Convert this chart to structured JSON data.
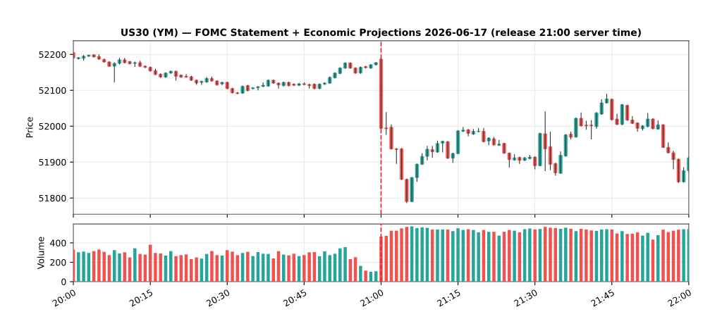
{
  "chart_data": [
    {
      "type": "candlestick",
      "title": "US30 (YM) — FOMC Statement + Economic Projections 2026-06-17 (release 21:00 server time)",
      "ylabel": "Price",
      "x": [
        "2026-06-17T20:00",
        "2026-06-17T20:01",
        "2026-06-17T20:02",
        "2026-06-17T20:03",
        "2026-06-17T20:04",
        "2026-06-17T20:05",
        "2026-06-17T20:06",
        "2026-06-17T20:07",
        "2026-06-17T20:08",
        "2026-06-17T20:09",
        "2026-06-17T20:10",
        "2026-06-17T20:11",
        "2026-06-17T20:12",
        "2026-06-17T20:13",
        "2026-06-17T20:14",
        "2026-06-17T20:15",
        "2026-06-17T20:16",
        "2026-06-17T20:17",
        "2026-06-17T20:18",
        "2026-06-17T20:19",
        "2026-06-17T20:20",
        "2026-06-17T20:21",
        "2026-06-17T20:22",
        "2026-06-17T20:23",
        "2026-06-17T20:24",
        "2026-06-17T20:25",
        "2026-06-17T20:26",
        "2026-06-17T20:27",
        "2026-06-17T20:28",
        "2026-06-17T20:29",
        "2026-06-17T20:30",
        "2026-06-17T20:31",
        "2026-06-17T20:32",
        "2026-06-17T20:33",
        "2026-06-17T20:34",
        "2026-06-17T20:35",
        "2026-06-17T20:36",
        "2026-06-17T20:37",
        "2026-06-17T20:38",
        "2026-06-17T20:39",
        "2026-06-17T20:40",
        "2026-06-17T20:41",
        "2026-06-17T20:42",
        "2026-06-17T20:43",
        "2026-06-17T20:44",
        "2026-06-17T20:45",
        "2026-06-17T20:46",
        "2026-06-17T20:47",
        "2026-06-17T20:48",
        "2026-06-17T20:49",
        "2026-06-17T20:50",
        "2026-06-17T20:51",
        "2026-06-17T20:52",
        "2026-06-17T20:53",
        "2026-06-17T20:54",
        "2026-06-17T20:55",
        "2026-06-17T20:56",
        "2026-06-17T20:57",
        "2026-06-17T20:58",
        "2026-06-17T20:59",
        "2026-06-17T21:00",
        "2026-06-17T21:01",
        "2026-06-17T21:02",
        "2026-06-17T21:03",
        "2026-06-17T21:04",
        "2026-06-17T21:05",
        "2026-06-17T21:06",
        "2026-06-17T21:07",
        "2026-06-17T21:08",
        "2026-06-17T21:09",
        "2026-06-17T21:10",
        "2026-06-17T21:11",
        "2026-06-17T21:12",
        "2026-06-17T21:13",
        "2026-06-17T21:14",
        "2026-06-17T21:15",
        "2026-06-17T21:16",
        "2026-06-17T21:17",
        "2026-06-17T21:18",
        "2026-06-17T21:19",
        "2026-06-17T21:20",
        "2026-06-17T21:21",
        "2026-06-17T21:22",
        "2026-06-17T21:23",
        "2026-06-17T21:24",
        "2026-06-17T21:25",
        "2026-06-17T21:26",
        "2026-06-17T21:27",
        "2026-06-17T21:28",
        "2026-06-17T21:29",
        "2026-06-17T21:30",
        "2026-06-17T21:31",
        "2026-06-17T21:32",
        "2026-06-17T21:33",
        "2026-06-17T21:34",
        "2026-06-17T21:35",
        "2026-06-17T21:36",
        "2026-06-17T21:37",
        "2026-06-17T21:38",
        "2026-06-17T21:39",
        "2026-06-17T21:40",
        "2026-06-17T21:41",
        "2026-06-17T21:42",
        "2026-06-17T21:43",
        "2026-06-17T21:44",
        "2026-06-17T21:45",
        "2026-06-17T21:46",
        "2026-06-17T21:47",
        "2026-06-17T21:48",
        "2026-06-17T21:49",
        "2026-06-17T21:50",
        "2026-06-17T21:51",
        "2026-06-17T21:52",
        "2026-06-17T21:53",
        "2026-06-17T21:54",
        "2026-06-17T21:55",
        "2026-06-17T21:56",
        "2026-06-17T21:57",
        "2026-06-17T21:58",
        "2026-06-17T21:59",
        "2026-06-17T22:00"
      ],
      "ohlc": [
        [
          52205,
          52207,
          52188,
          52190
        ],
        [
          52188,
          52192,
          52186,
          52191
        ],
        [
          52189,
          52198,
          52183,
          52195
        ],
        [
          52195,
          52199,
          52193,
          52198
        ],
        [
          52199,
          52200,
          52191,
          52193
        ],
        [
          52194,
          52200,
          52185,
          52187
        ],
        [
          52186,
          52188,
          52177,
          52179
        ],
        [
          52179,
          52181,
          52165,
          52167
        ],
        [
          52167,
          52178,
          52122,
          52175
        ],
        [
          52175,
          52190,
          52172,
          52185
        ],
        [
          52185,
          52190,
          52175,
          52177
        ],
        [
          52180,
          52182,
          52172,
          52174
        ],
        [
          52175,
          52180,
          52165,
          52177
        ],
        [
          52177,
          52182,
          52165,
          52167
        ],
        [
          52167,
          52169,
          52162,
          52164
        ],
        [
          52164,
          52166,
          52152,
          52154
        ],
        [
          52155,
          52160,
          52142,
          52144
        ],
        [
          52145,
          52147,
          52135,
          52137
        ],
        [
          52137,
          52150,
          52135,
          52148
        ],
        [
          52148,
          52155,
          52146,
          52153
        ],
        [
          52153,
          52155,
          52127,
          52139
        ],
        [
          52142,
          52144,
          52135,
          52137
        ],
        [
          52139,
          52145,
          52135,
          52137
        ],
        [
          52138,
          52140,
          52126,
          52128
        ],
        [
          52128,
          52130,
          52115,
          52120
        ],
        [
          52122,
          52127,
          52115,
          52125
        ],
        [
          52123,
          52137,
          52121,
          52133
        ],
        [
          52133,
          52138,
          52124,
          52126
        ],
        [
          52126,
          52128,
          52113,
          52115
        ],
        [
          52118,
          52124,
          52114,
          52122
        ],
        [
          52122,
          52124,
          52103,
          52105
        ],
        [
          52105,
          52107,
          52091,
          52093
        ],
        [
          52093,
          52095,
          52089,
          52091
        ],
        [
          52092,
          52113,
          52090,
          52111
        ],
        [
          52113,
          52115,
          52097,
          52099
        ],
        [
          52105,
          52109,
          52103,
          52107
        ],
        [
          52107,
          52112,
          52100,
          52110
        ],
        [
          52111,
          52122,
          52109,
          52114
        ],
        [
          52112,
          52130,
          52110,
          52128
        ],
        [
          52128,
          52130,
          52118,
          52120
        ],
        [
          52120,
          52122,
          52105,
          52115
        ],
        [
          52113,
          52124,
          52111,
          52122
        ],
        [
          52122,
          52124,
          52111,
          52113
        ],
        [
          52117,
          52119,
          52112,
          52114
        ],
        [
          52114,
          52120,
          52112,
          52118
        ],
        [
          52118,
          52122,
          52114,
          52116
        ],
        [
          52116,
          52118,
          52105,
          52113
        ],
        [
          52117,
          52119,
          52103,
          52105
        ],
        [
          52105,
          52119,
          52103,
          52117
        ],
        [
          52117,
          52122,
          52115,
          52120
        ],
        [
          52120,
          52138,
          52118,
          52136
        ],
        [
          52135,
          52150,
          52133,
          52148
        ],
        [
          52147,
          52164,
          52145,
          52162
        ],
        [
          52162,
          52178,
          52160,
          52176
        ],
        [
          52176,
          52178,
          52160,
          52162
        ],
        [
          52162,
          52164,
          52146,
          52148
        ],
        [
          52148,
          52166,
          52146,
          52164
        ],
        [
          52166,
          52168,
          52161,
          52163
        ],
        [
          52162,
          52173,
          52160,
          52171
        ],
        [
          52171,
          52179,
          52169,
          52177
        ],
        [
          52187,
          52190,
          51992,
          51994
        ],
        [
          51995,
          52039,
          51976,
          51993
        ],
        [
          51997,
          52005,
          51935,
          51937
        ],
        [
          51937,
          51939,
          51895,
          51935
        ],
        [
          51937,
          51939,
          51850,
          51852
        ],
        [
          51852,
          51854,
          51786,
          51790
        ],
        [
          51790,
          51859,
          51788,
          51857
        ],
        [
          51857,
          51896,
          51845,
          51894
        ],
        [
          51894,
          51925,
          51892,
          51916
        ],
        [
          51916,
          51945,
          51905,
          51936
        ],
        [
          51935,
          51945,
          51912,
          51929
        ],
        [
          51928,
          51960,
          51926,
          51952
        ],
        [
          51953,
          51960,
          51927,
          51958
        ],
        [
          51957,
          51959,
          51909,
          51911
        ],
        [
          51911,
          51926,
          51898,
          51924
        ],
        [
          51924,
          51989,
          51922,
          51987
        ],
        [
          51986,
          51998,
          51984,
          51989
        ],
        [
          51990,
          51992,
          51972,
          51980
        ],
        [
          51978,
          51992,
          51976,
          51986
        ],
        [
          51985,
          51995,
          51983,
          51986
        ],
        [
          51986,
          51995,
          51955,
          51957
        ],
        [
          51959,
          51969,
          51947,
          51967
        ],
        [
          51965,
          51970,
          51946,
          51948
        ],
        [
          51947,
          51962,
          51945,
          51950
        ],
        [
          51952,
          51954,
          51923,
          51925
        ],
        [
          51925,
          51927,
          51885,
          51907
        ],
        [
          51906,
          51922,
          51904,
          51912
        ],
        [
          51913,
          51915,
          51895,
          51905
        ],
        [
          51905,
          51914,
          51903,
          51912
        ],
        [
          51910,
          51920,
          51908,
          51914
        ],
        [
          51914,
          51916,
          51880,
          51890
        ],
        [
          51890,
          51982,
          51888,
          51980
        ],
        [
          51979,
          52041,
          51875,
          51937
        ],
        [
          51943,
          51985,
          51878,
          51894
        ],
        [
          51896,
          51898,
          51862,
          51870
        ],
        [
          51869,
          51930,
          51867,
          51919
        ],
        [
          51917,
          51978,
          51915,
          51976
        ],
        [
          51978,
          51985,
          51963,
          51969
        ],
        [
          51970,
          52024,
          51968,
          52022
        ],
        [
          52022,
          52038,
          51999,
          52001
        ],
        [
          52003,
          52015,
          51990,
          52001
        ],
        [
          52003,
          52017,
          51963,
          52001
        ],
        [
          51999,
          52039,
          51993,
          52037
        ],
        [
          52034,
          52075,
          52032,
          52065
        ],
        [
          52065,
          52090,
          52063,
          52076
        ],
        [
          52075,
          52077,
          52016,
          52018
        ],
        [
          52020,
          52035,
          52003,
          52005
        ],
        [
          52005,
          52062,
          52003,
          52060
        ],
        [
          52058,
          52060,
          52015,
          52017
        ],
        [
          52017,
          52028,
          52006,
          52008
        ],
        [
          52009,
          52011,
          51985,
          51994
        ],
        [
          51993,
          52003,
          51988,
          52001
        ],
        [
          51999,
          52037,
          51997,
          52020
        ],
        [
          52020,
          52022,
          51991,
          51993
        ],
        [
          51992,
          52016,
          51990,
          52004
        ],
        [
          52004,
          52006,
          51939,
          51941
        ],
        [
          51941,
          51955,
          51924,
          51926
        ],
        [
          51926,
          51932,
          51880,
          51907
        ],
        [
          51908,
          51910,
          51842,
          51845
        ],
        [
          51845,
          51886,
          51843,
          51876
        ],
        [
          51876,
          51914,
          51874,
          51912
        ]
      ],
      "colors": [
        "#ef5350",
        "#26a69a",
        "#26a69a",
        "#26a69a",
        "#ef5350",
        "#ef5350",
        "#ef5350",
        "#ef5350",
        "#26a69a",
        "#26a69a",
        "#ef5350",
        "#ef5350",
        "#26a69a",
        "#ef5350",
        "#ef5350",
        "#ef5350",
        "#ef5350",
        "#ef5350",
        "#26a69a",
        "#26a69a",
        "#ef5350",
        "#ef5350",
        "#ef5350",
        "#ef5350",
        "#ef5350",
        "#26a69a",
        "#26a69a",
        "#ef5350",
        "#ef5350",
        "#26a69a",
        "#ef5350",
        "#ef5350",
        "#ef5350",
        "#26a69a",
        "#ef5350",
        "#26a69a",
        "#26a69a",
        "#26a69a",
        "#26a69a",
        "#ef5350",
        "#ef5350",
        "#26a69a",
        "#ef5350",
        "#ef5350",
        "#26a69a",
        "#ef5350",
        "#ef5350",
        "#ef5350",
        "#26a69a",
        "#26a69a",
        "#26a69a",
        "#26a69a",
        "#26a69a",
        "#26a69a",
        "#ef5350",
        "#ef5350",
        "#26a69a",
        "#ef5350",
        "#26a69a",
        "#26a69a",
        "#ef5350",
        "#ef5350",
        "#ef5350",
        "#ef5350",
        "#ef5350",
        "#ef5350",
        "#26a69a",
        "#26a69a",
        "#26a69a",
        "#26a69a",
        "#ef5350",
        "#26a69a",
        "#26a69a",
        "#ef5350",
        "#26a69a",
        "#26a69a",
        "#26a69a",
        "#ef5350",
        "#26a69a",
        "#26a69a",
        "#ef5350",
        "#26a69a",
        "#ef5350",
        "#26a69a",
        "#ef5350",
        "#ef5350",
        "#26a69a",
        "#ef5350",
        "#26a69a",
        "#26a69a",
        "#ef5350",
        "#26a69a",
        "#ef5350",
        "#ef5350",
        "#ef5350",
        "#26a69a",
        "#26a69a",
        "#ef5350",
        "#26a69a",
        "#ef5350",
        "#ef5350",
        "#ef5350",
        "#26a69a",
        "#26a69a",
        "#26a69a",
        "#ef5350",
        "#ef5350",
        "#26a69a",
        "#ef5350",
        "#ef5350",
        "#ef5350",
        "#26a69a",
        "#26a69a",
        "#ef5350",
        "#26a69a",
        "#ef5350",
        "#ef5350",
        "#ef5350",
        "#ef5350",
        "#26a69a",
        "#26a69a"
      ],
      "xlim": [
        "2026-06-17T20:00",
        "2026-06-17T22:00"
      ],
      "xticks": [
        {
          "value": "2026-06-17T20:00",
          "label": null
        },
        {
          "value": "2026-06-17T20:15",
          "label": null
        },
        {
          "value": "2026-06-17T20:30",
          "label": null
        },
        {
          "value": "2026-06-17T20:45",
          "label": null
        },
        {
          "value": "2026-06-17T21:00",
          "label": null
        },
        {
          "value": "2026-06-17T21:15",
          "label": null
        },
        {
          "value": "2026-06-17T21:30",
          "label": null
        },
        {
          "value": "2026-06-17T21:45",
          "label": null
        },
        {
          "value": "2026-06-17T22:00",
          "label": null
        }
      ],
      "ylim": [
        51755,
        52238
      ],
      "yticks": [
        51800,
        51900,
        52000,
        52100,
        52200
      ],
      "ref_lines": [
        {
          "axis": "x",
          "value": "2026-06-17T21:00",
          "color": "#e8202a",
          "line_style": "dashed"
        }
      ],
      "grid": true,
      "tick_labels": "y"
    },
    {
      "type": "bar",
      "ylabel": "Volume",
      "x": [
        "2026-06-17T20:00",
        "2026-06-17T20:01",
        "2026-06-17T20:02",
        "2026-06-17T20:03",
        "2026-06-17T20:04",
        "2026-06-17T20:05",
        "2026-06-17T20:06",
        "2026-06-17T20:07",
        "2026-06-17T20:08",
        "2026-06-17T20:09",
        "2026-06-17T20:10",
        "2026-06-17T20:11",
        "2026-06-17T20:12",
        "2026-06-17T20:13",
        "2026-06-17T20:14",
        "2026-06-17T20:15",
        "2026-06-17T20:16",
        "2026-06-17T20:17",
        "2026-06-17T20:18",
        "2026-06-17T20:19",
        "2026-06-17T20:20",
        "2026-06-17T20:21",
        "2026-06-17T20:22",
        "2026-06-17T20:23",
        "2026-06-17T20:24",
        "2026-06-17T20:25",
        "2026-06-17T20:26",
        "2026-06-17T20:27",
        "2026-06-17T20:28",
        "2026-06-17T20:29",
        "2026-06-17T20:30",
        "2026-06-17T20:31",
        "2026-06-17T20:32",
        "2026-06-17T20:33",
        "2026-06-17T20:34",
        "2026-06-17T20:35",
        "2026-06-17T20:36",
        "2026-06-17T20:37",
        "2026-06-17T20:38",
        "2026-06-17T20:39",
        "2026-06-17T20:40",
        "2026-06-17T20:41",
        "2026-06-17T20:42",
        "2026-06-17T20:43",
        "2026-06-17T20:44",
        "2026-06-17T20:45",
        "2026-06-17T20:46",
        "2026-06-17T20:47",
        "2026-06-17T20:48",
        "2026-06-17T20:49",
        "2026-06-17T20:50",
        "2026-06-17T20:51",
        "2026-06-17T20:52",
        "2026-06-17T20:53",
        "2026-06-17T20:54",
        "2026-06-17T20:55",
        "2026-06-17T20:56",
        "2026-06-17T20:57",
        "2026-06-17T20:58",
        "2026-06-17T20:59",
        "2026-06-17T21:00",
        "2026-06-17T21:01",
        "2026-06-17T21:02",
        "2026-06-17T21:03",
        "2026-06-17T21:04",
        "2026-06-17T21:05",
        "2026-06-17T21:06",
        "2026-06-17T21:07",
        "2026-06-17T21:08",
        "2026-06-17T21:09",
        "2026-06-17T21:10",
        "2026-06-17T21:11",
        "2026-06-17T21:12",
        "2026-06-17T21:13",
        "2026-06-17T21:14",
        "2026-06-17T21:15",
        "2026-06-17T21:16",
        "2026-06-17T21:17",
        "2026-06-17T21:18",
        "2026-06-17T21:19",
        "2026-06-17T21:20",
        "2026-06-17T21:21",
        "2026-06-17T21:22",
        "2026-06-17T21:23",
        "2026-06-17T21:24",
        "2026-06-17T21:25",
        "2026-06-17T21:26",
        "2026-06-17T21:27",
        "2026-06-17T21:28",
        "2026-06-17T21:29",
        "2026-06-17T21:30",
        "2026-06-17T21:31",
        "2026-06-17T21:32",
        "2026-06-17T21:33",
        "2026-06-17T21:34",
        "2026-06-17T21:35",
        "2026-06-17T21:36",
        "2026-06-17T21:37",
        "2026-06-17T21:38",
        "2026-06-17T21:39",
        "2026-06-17T21:40",
        "2026-06-17T21:41",
        "2026-06-17T21:42",
        "2026-06-17T21:43",
        "2026-06-17T21:44",
        "2026-06-17T21:45",
        "2026-06-17T21:46",
        "2026-06-17T21:47",
        "2026-06-17T21:48",
        "2026-06-17T21:49",
        "2026-06-17T21:50",
        "2026-06-17T21:51",
        "2026-06-17T21:52",
        "2026-06-17T21:53",
        "2026-06-17T21:54",
        "2026-06-17T21:55",
        "2026-06-17T21:56",
        "2026-06-17T21:57",
        "2026-06-17T21:58",
        "2026-06-17T21:59",
        "2026-06-17T22:00"
      ],
      "values": [
        330,
        303,
        310,
        296,
        315,
        332,
        308,
        274,
        325,
        291,
        303,
        250,
        344,
        286,
        279,
        381,
        296,
        291,
        269,
        315,
        264,
        274,
        281,
        233,
        250,
        238,
        286,
        315,
        274,
        269,
        325,
        310,
        274,
        296,
        308,
        264,
        305,
        288,
        286,
        240,
        315,
        279,
        271,
        288,
        264,
        274,
        303,
        305,
        262,
        313,
        274,
        288,
        344,
        356,
        233,
        252,
        162,
        114,
        102,
        107,
        465,
        473,
        526,
        526,
        550,
        565,
        570,
        553,
        560,
        555,
        538,
        538,
        538,
        538,
        521,
        550,
        533,
        541,
        533,
        509,
        533,
        514,
        514,
        475,
        514,
        533,
        526,
        509,
        541,
        548,
        538,
        543,
        565,
        557,
        553,
        545,
        557,
        545,
        521,
        545,
        538,
        528,
        524,
        538,
        541,
        538,
        497,
        521,
        492,
        495,
        509,
        475,
        504,
        434,
        480,
        536,
        511,
        526,
        536,
        541,
        543
      ],
      "colors": [
        "#ef5350",
        "#26a69a",
        "#26a69a",
        "#26a69a",
        "#ef5350",
        "#ef5350",
        "#ef5350",
        "#ef5350",
        "#26a69a",
        "#26a69a",
        "#ef5350",
        "#ef5350",
        "#26a69a",
        "#ef5350",
        "#ef5350",
        "#ef5350",
        "#ef5350",
        "#ef5350",
        "#26a69a",
        "#26a69a",
        "#ef5350",
        "#ef5350",
        "#ef5350",
        "#ef5350",
        "#ef5350",
        "#26a69a",
        "#26a69a",
        "#ef5350",
        "#ef5350",
        "#26a69a",
        "#ef5350",
        "#ef5350",
        "#ef5350",
        "#26a69a",
        "#ef5350",
        "#26a69a",
        "#26a69a",
        "#26a69a",
        "#26a69a",
        "#ef5350",
        "#ef5350",
        "#26a69a",
        "#ef5350",
        "#ef5350",
        "#26a69a",
        "#ef5350",
        "#ef5350",
        "#ef5350",
        "#26a69a",
        "#26a69a",
        "#26a69a",
        "#26a69a",
        "#26a69a",
        "#26a69a",
        "#ef5350",
        "#ef5350",
        "#26a69a",
        "#ef5350",
        "#26a69a",
        "#26a69a",
        "#ef5350",
        "#ef5350",
        "#ef5350",
        "#ef5350",
        "#ef5350",
        "#ef5350",
        "#26a69a",
        "#26a69a",
        "#26a69a",
        "#26a69a",
        "#ef5350",
        "#26a69a",
        "#26a69a",
        "#ef5350",
        "#26a69a",
        "#26a69a",
        "#26a69a",
        "#ef5350",
        "#26a69a",
        "#26a69a",
        "#ef5350",
        "#26a69a",
        "#ef5350",
        "#26a69a",
        "#ef5350",
        "#ef5350",
        "#26a69a",
        "#ef5350",
        "#26a69a",
        "#26a69a",
        "#ef5350",
        "#26a69a",
        "#ef5350",
        "#ef5350",
        "#ef5350",
        "#26a69a",
        "#26a69a",
        "#ef5350",
        "#26a69a",
        "#ef5350",
        "#ef5350",
        "#ef5350",
        "#26a69a",
        "#26a69a",
        "#26a69a",
        "#ef5350",
        "#ef5350",
        "#26a69a",
        "#ef5350",
        "#ef5350",
        "#ef5350",
        "#26a69a",
        "#26a69a",
        "#ef5350",
        "#26a69a",
        "#ef5350",
        "#ef5350",
        "#ef5350",
        "#ef5350",
        "#26a69a",
        "#26a69a"
      ],
      "xlim": [
        "2026-06-17T20:00",
        "2026-06-17T22:00"
      ],
      "xticks": [
        {
          "value": "2026-06-17T20:00",
          "label": "20:00"
        },
        {
          "value": "2026-06-17T20:15",
          "label": "20:15"
        },
        {
          "value": "2026-06-17T20:30",
          "label": "20:30"
        },
        {
          "value": "2026-06-17T20:45",
          "label": "20:45"
        },
        {
          "value": "2026-06-17T21:00",
          "label": "21:00"
        },
        {
          "value": "2026-06-17T21:15",
          "label": "21:15"
        },
        {
          "value": "2026-06-17T21:30",
          "label": "21:30"
        },
        {
          "value": "2026-06-17T21:45",
          "label": "21:45"
        },
        {
          "value": "2026-06-17T22:00",
          "label": "22:00"
        }
      ],
      "ylim": [
        0,
        595
      ],
      "yticks": [
        0,
        200,
        400
      ],
      "ref_lines": [
        {
          "axis": "x",
          "value": "2026-06-17T21:00",
          "color": "#e8202a",
          "line_style": "dashed"
        }
      ],
      "grid": true
    }
  ]
}
